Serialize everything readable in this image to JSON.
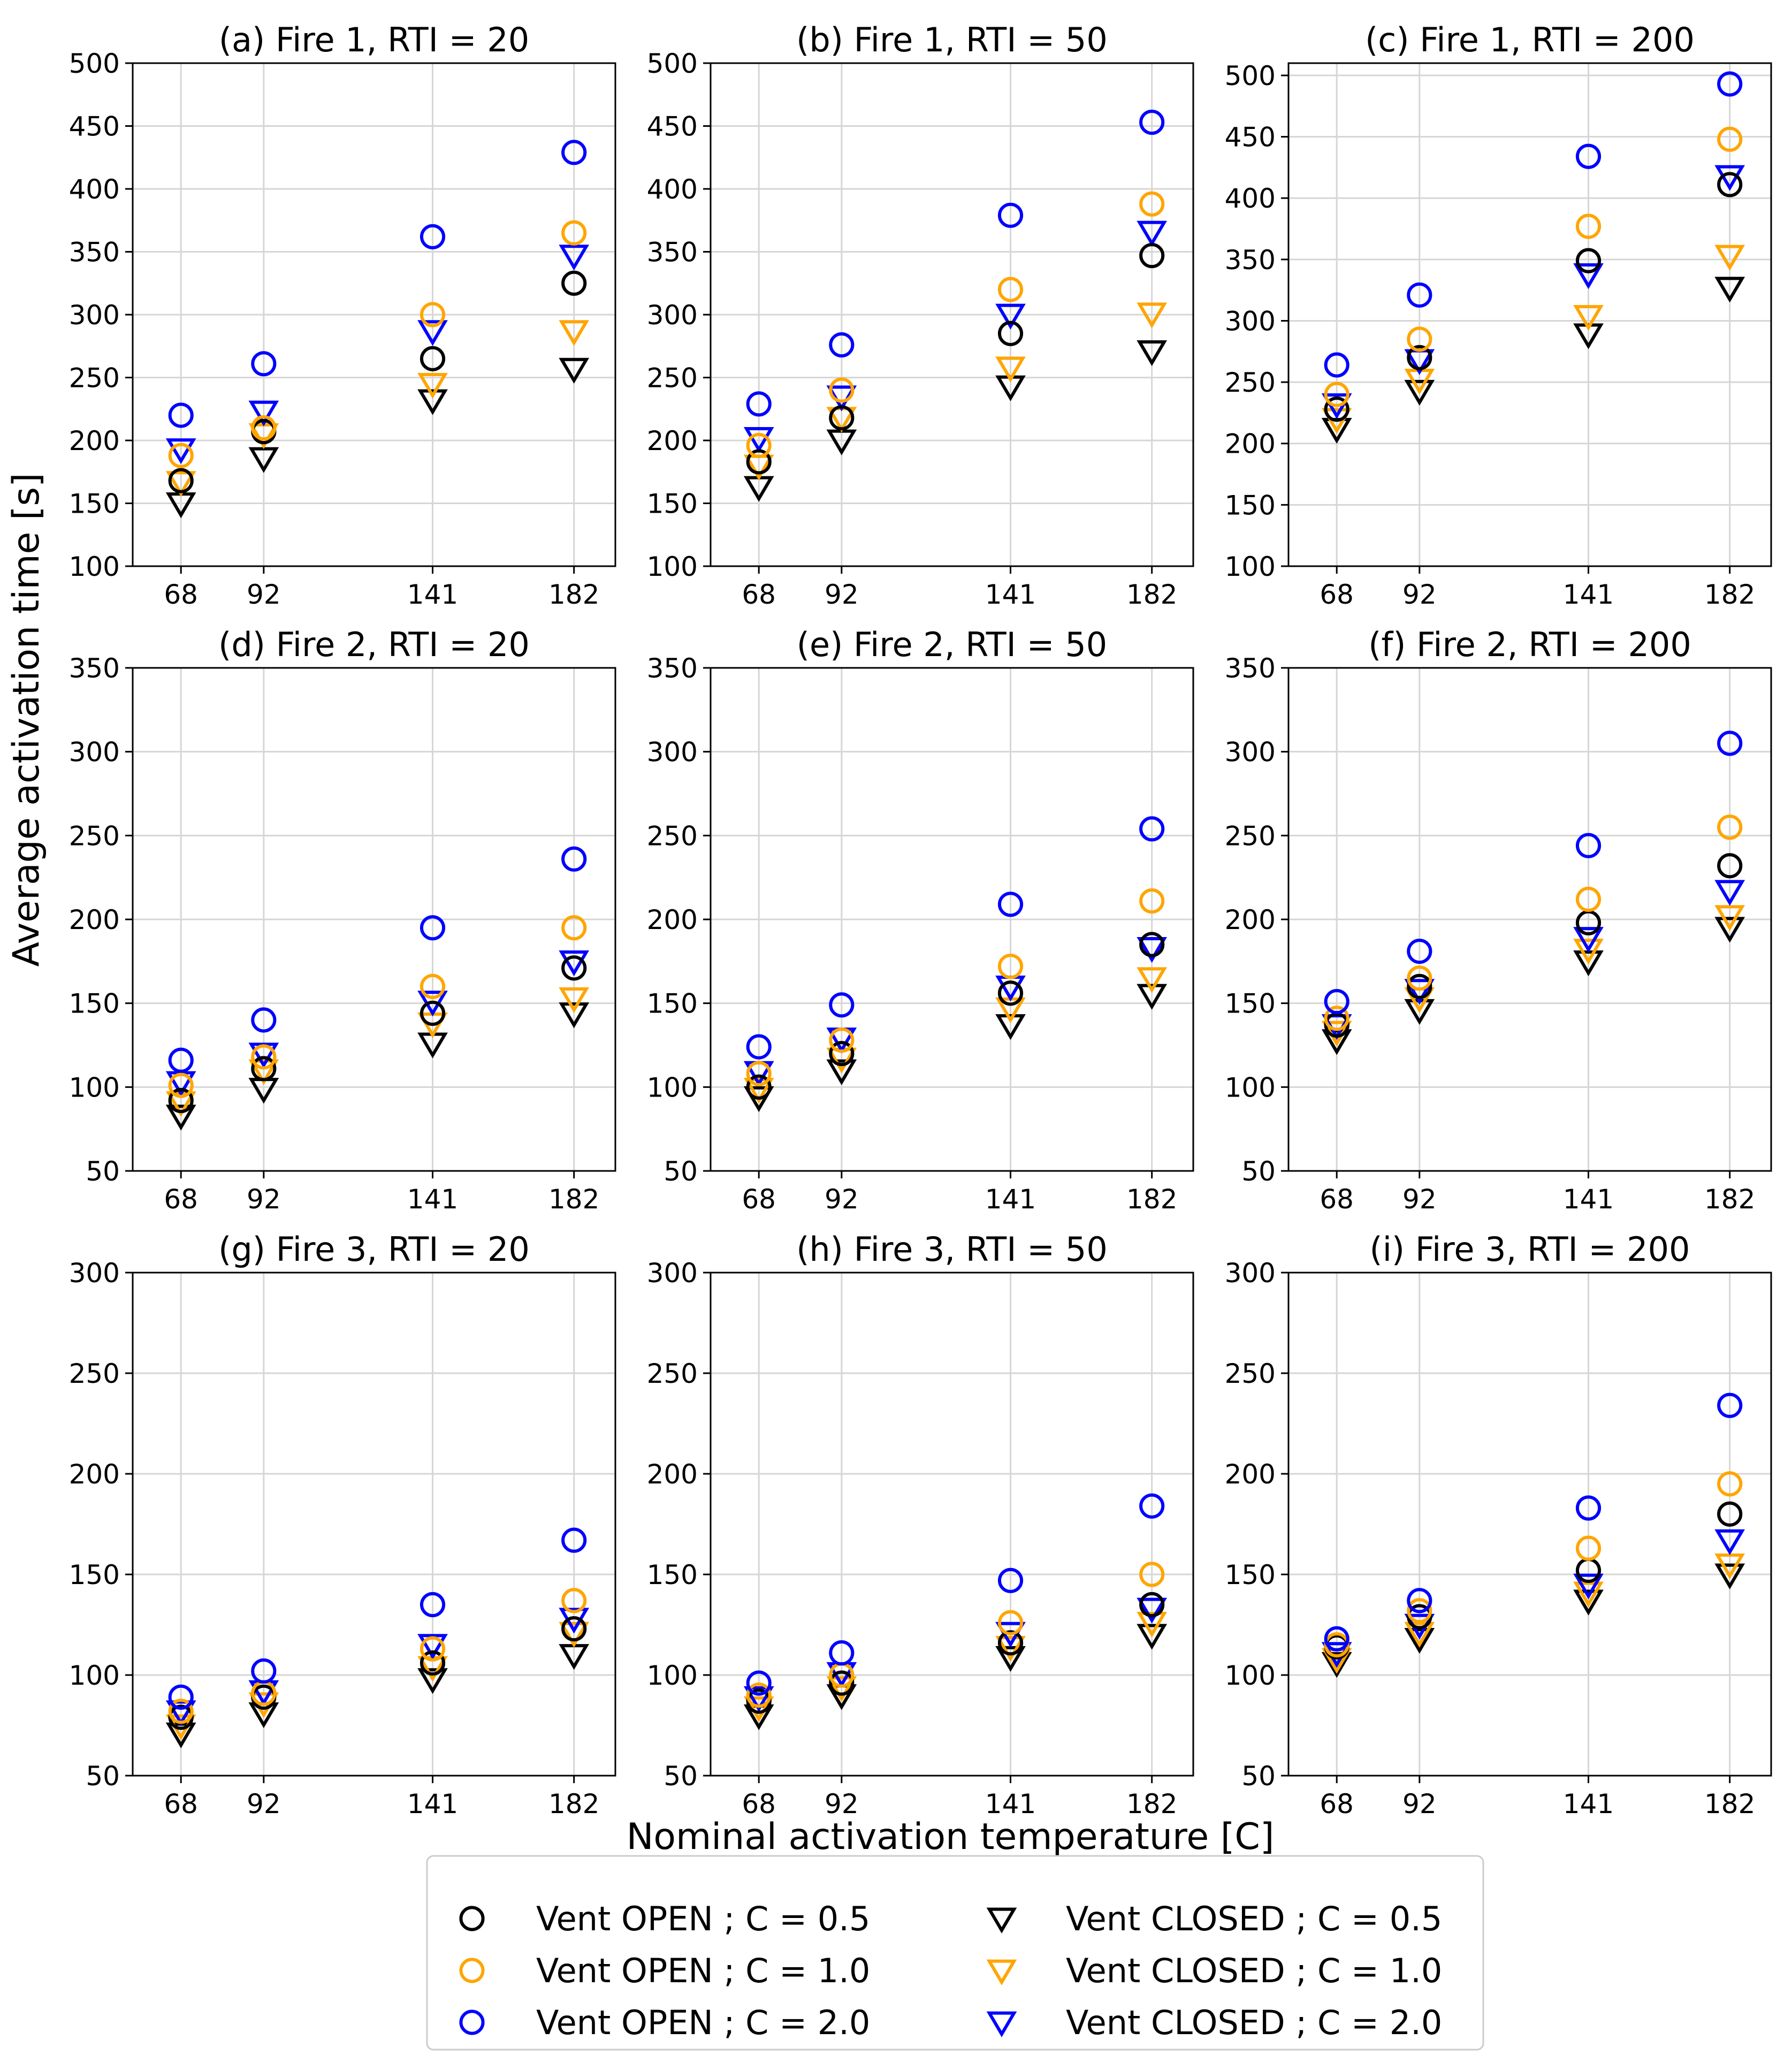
{
  "figure": {
    "ylabel": "Average activation time [s]",
    "xlabel": "Nominal activation temperature [C]"
  },
  "legend": {
    "position": "bottom-center",
    "entries": [
      {
        "label": "Vent OPEN ; C = 0.5",
        "marker": "circle",
        "color": "#000000"
      },
      {
        "label": "Vent OPEN ; C = 1.0",
        "marker": "circle",
        "color": "#FFA500"
      },
      {
        "label": "Vent OPEN ; C = 2.0",
        "marker": "circle",
        "color": "#0000FF"
      },
      {
        "label": "Vent CLOSED ; C = 0.5",
        "marker": "triangle-down",
        "color": "#000000"
      },
      {
        "label": "Vent CLOSED ; C = 1.0",
        "marker": "triangle-down",
        "color": "#FFA500"
      },
      {
        "label": "Vent CLOSED ; C = 2.0",
        "marker": "triangle-down",
        "color": "#0000FF"
      }
    ]
  },
  "chart_data": [
    {
      "type": "scatter",
      "title": "(a) Fire 1, RTI = 20",
      "x": [
        68,
        92,
        141,
        182
      ],
      "xlim": [
        54,
        194
      ],
      "ylim": [
        100,
        500
      ],
      "yticks": [
        100,
        150,
        200,
        250,
        300,
        350,
        400,
        450,
        500
      ],
      "grid": true,
      "series": [
        {
          "name": "Vent OPEN ; C = 0.5",
          "values": [
            168,
            207,
            265,
            325
          ]
        },
        {
          "name": "Vent OPEN ; C = 1.0",
          "values": [
            188,
            210,
            300,
            365
          ]
        },
        {
          "name": "Vent OPEN ; C = 2.0",
          "values": [
            220,
            261,
            362,
            429
          ]
        },
        {
          "name": "Vent CLOSED ; C = 0.5",
          "values": [
            150,
            186,
            232,
            257
          ]
        },
        {
          "name": "Vent CLOSED ; C = 1.0",
          "values": [
            167,
            205,
            245,
            287
          ]
        },
        {
          "name": "Vent CLOSED ; C = 2.0",
          "values": [
            193,
            223,
            287,
            347
          ]
        }
      ]
    },
    {
      "type": "scatter",
      "title": "(b) Fire 1, RTI = 50",
      "x": [
        68,
        92,
        141,
        182
      ],
      "xlim": [
        54,
        194
      ],
      "ylim": [
        100,
        500
      ],
      "yticks": [
        100,
        150,
        200,
        250,
        300,
        350,
        400,
        450,
        500
      ],
      "grid": true,
      "series": [
        {
          "name": "Vent OPEN ; C = 0.5",
          "values": [
            183,
            218,
            285,
            347
          ]
        },
        {
          "name": "Vent OPEN ; C = 1.0",
          "values": [
            196,
            240,
            320,
            388
          ]
        },
        {
          "name": "Vent OPEN ; C = 2.0",
          "values": [
            229,
            276,
            379,
            453
          ]
        },
        {
          "name": "Vent CLOSED ; C = 0.5",
          "values": [
            163,
            200,
            243,
            271
          ]
        },
        {
          "name": "Vent CLOSED ; C = 1.0",
          "values": [
            180,
            218,
            258,
            301
          ]
        },
        {
          "name": "Vent CLOSED ; C = 2.0",
          "values": [
            202,
            235,
            300,
            366
          ]
        }
      ]
    },
    {
      "type": "scatter",
      "title": "(c) Fire 1, RTI = 200",
      "x": [
        68,
        92,
        141,
        182
      ],
      "xlim": [
        54,
        194
      ],
      "ylim": [
        100,
        510
      ],
      "yticks": [
        100,
        150,
        200,
        250,
        300,
        350,
        400,
        450,
        500
      ],
      "grid": true,
      "series": [
        {
          "name": "Vent OPEN ; C = 0.5",
          "values": [
            228,
            270,
            349,
            411
          ]
        },
        {
          "name": "Vent OPEN ; C = 1.0",
          "values": [
            240,
            285,
            377,
            448
          ]
        },
        {
          "name": "Vent OPEN ; C = 2.0",
          "values": [
            264,
            321,
            434,
            493
          ]
        },
        {
          "name": "Vent CLOSED ; C = 0.5",
          "values": [
            212,
            243,
            289,
            327
          ]
        },
        {
          "name": "Vent CLOSED ; C = 1.0",
          "values": [
            220,
            252,
            304,
            353
          ]
        },
        {
          "name": "Vent CLOSED ; C = 2.0",
          "values": [
            232,
            268,
            338,
            418
          ]
        }
      ]
    },
    {
      "type": "scatter",
      "title": "(d) Fire 2, RTI = 20",
      "x": [
        68,
        92,
        141,
        182
      ],
      "xlim": [
        54,
        194
      ],
      "ylim": [
        50,
        350
      ],
      "yticks": [
        50,
        100,
        150,
        200,
        250,
        300,
        350
      ],
      "grid": true,
      "series": [
        {
          "name": "Vent OPEN ; C = 0.5",
          "values": [
            92,
            111,
            144,
            171
          ]
        },
        {
          "name": "Vent OPEN ; C = 1.0",
          "values": [
            101,
            118,
            160,
            195
          ]
        },
        {
          "name": "Vent OPEN ; C = 2.0",
          "values": [
            116,
            140,
            195,
            236
          ]
        },
        {
          "name": "Vent CLOSED ; C = 0.5",
          "values": [
            83,
            99,
            126,
            144
          ]
        },
        {
          "name": "Vent CLOSED ; C = 1.0",
          "values": [
            91,
            110,
            138,
            153
          ]
        },
        {
          "name": "Vent CLOSED ; C = 2.0",
          "values": [
            103,
            120,
            151,
            175
          ]
        }
      ]
    },
    {
      "type": "scatter",
      "title": "(e) Fire 2, RTI = 50",
      "x": [
        68,
        92,
        141,
        182
      ],
      "xlim": [
        54,
        194
      ],
      "ylim": [
        50,
        350
      ],
      "yticks": [
        50,
        100,
        150,
        200,
        250,
        300,
        350
      ],
      "grid": true,
      "series": [
        {
          "name": "Vent OPEN ; C = 0.5",
          "values": [
            100,
            120,
            156,
            185
          ]
        },
        {
          "name": "Vent OPEN ; C = 1.0",
          "values": [
            108,
            128,
            172,
            211
          ]
        },
        {
          "name": "Vent OPEN ; C = 2.0",
          "values": [
            124,
            149,
            209,
            254
          ]
        },
        {
          "name": "Vent CLOSED ; C = 0.5",
          "values": [
            94,
            110,
            137,
            155
          ]
        },
        {
          "name": "Vent CLOSED ; C = 1.0",
          "values": [
            99,
            117,
            147,
            165
          ]
        },
        {
          "name": "Vent CLOSED ; C = 2.0",
          "values": [
            109,
            129,
            160,
            183
          ]
        }
      ]
    },
    {
      "type": "scatter",
      "title": "(f) Fire 2, RTI = 200",
      "x": [
        68,
        92,
        141,
        182
      ],
      "xlim": [
        54,
        194
      ],
      "ylim": [
        50,
        350
      ],
      "yticks": [
        50,
        100,
        150,
        200,
        250,
        300,
        350
      ],
      "grid": true,
      "series": [
        {
          "name": "Vent OPEN ; C = 0.5",
          "values": [
            137,
            160,
            198,
            232
          ]
        },
        {
          "name": "Vent OPEN ; C = 1.0",
          "values": [
            141,
            165,
            212,
            255
          ]
        },
        {
          "name": "Vent OPEN ; C = 2.0",
          "values": [
            151,
            181,
            244,
            305
          ]
        },
        {
          "name": "Vent CLOSED ; C = 0.5",
          "values": [
            128,
            146,
            175,
            195
          ]
        },
        {
          "name": "Vent CLOSED ; C = 1.0",
          "values": [
            133,
            153,
            182,
            202
          ]
        },
        {
          "name": "Vent CLOSED ; C = 2.0",
          "values": [
            137,
            158,
            189,
            217
          ]
        }
      ]
    },
    {
      "type": "scatter",
      "title": "(g) Fire 3, RTI = 20",
      "x": [
        68,
        92,
        141,
        182
      ],
      "xlim": [
        54,
        194
      ],
      "ylim": [
        50,
        300
      ],
      "yticks": [
        50,
        100,
        150,
        200,
        250,
        300
      ],
      "grid": true,
      "series": [
        {
          "name": "Vent OPEN ; C = 0.5",
          "values": [
            79,
            89,
            106,
            123
          ]
        },
        {
          "name": "Vent OPEN ; C = 1.0",
          "values": [
            82,
            91,
            113,
            137
          ]
        },
        {
          "name": "Vent OPEN ; C = 2.0",
          "values": [
            89,
            102,
            135,
            167
          ]
        },
        {
          "name": "Vent CLOSED ; C = 0.5",
          "values": [
            71,
            81,
            98,
            110
          ]
        },
        {
          "name": "Vent CLOSED ; C = 1.0",
          "values": [
            75,
            86,
            104,
            121
          ]
        },
        {
          "name": "Vent CLOSED ; C = 2.0",
          "values": [
            82,
            92,
            115,
            128
          ]
        }
      ]
    },
    {
      "type": "scatter",
      "title": "(h) Fire 3, RTI = 50",
      "x": [
        68,
        92,
        141,
        182
      ],
      "xlim": [
        54,
        194
      ],
      "ylim": [
        50,
        300
      ],
      "yticks": [
        50,
        100,
        150,
        200,
        250,
        300
      ],
      "grid": true,
      "series": [
        {
          "name": "Vent OPEN ; C = 0.5",
          "values": [
            87,
            96,
            116,
            135
          ]
        },
        {
          "name": "Vent OPEN ; C = 1.0",
          "values": [
            90,
            100,
            126,
            150
          ]
        },
        {
          "name": "Vent OPEN ; C = 2.0",
          "values": [
            96,
            111,
            147,
            184
          ]
        },
        {
          "name": "Vent CLOSED ; C = 0.5",
          "values": [
            80,
            90,
            109,
            120
          ]
        },
        {
          "name": "Vent CLOSED ; C = 1.0",
          "values": [
            84,
            94,
            114,
            126
          ]
        },
        {
          "name": "Vent CLOSED ; C = 2.0",
          "values": [
            89,
            101,
            121,
            133
          ]
        }
      ]
    },
    {
      "type": "scatter",
      "title": "(i) Fire 3, RTI = 200",
      "x": [
        68,
        92,
        141,
        182
      ],
      "xlim": [
        54,
        194
      ],
      "ylim": [
        50,
        300
      ],
      "yticks": [
        50,
        100,
        150,
        200,
        250,
        300
      ],
      "grid": true,
      "series": [
        {
          "name": "Vent OPEN ; C = 0.5",
          "values": [
            114,
            129,
            152,
            180
          ]
        },
        {
          "name": "Vent OPEN ; C = 1.0",
          "values": [
            115,
            132,
            163,
            195
          ]
        },
        {
          "name": "Vent OPEN ; C = 2.0",
          "values": [
            118,
            137,
            183,
            234
          ]
        },
        {
          "name": "Vent CLOSED ; C = 0.5",
          "values": [
            106,
            118,
            137,
            150
          ]
        },
        {
          "name": "Vent CLOSED ; C = 1.0",
          "values": [
            108,
            121,
            141,
            155
          ]
        },
        {
          "name": "Vent CLOSED ; C = 2.0",
          "values": [
            111,
            125,
            145,
            167
          ]
        }
      ]
    }
  ]
}
